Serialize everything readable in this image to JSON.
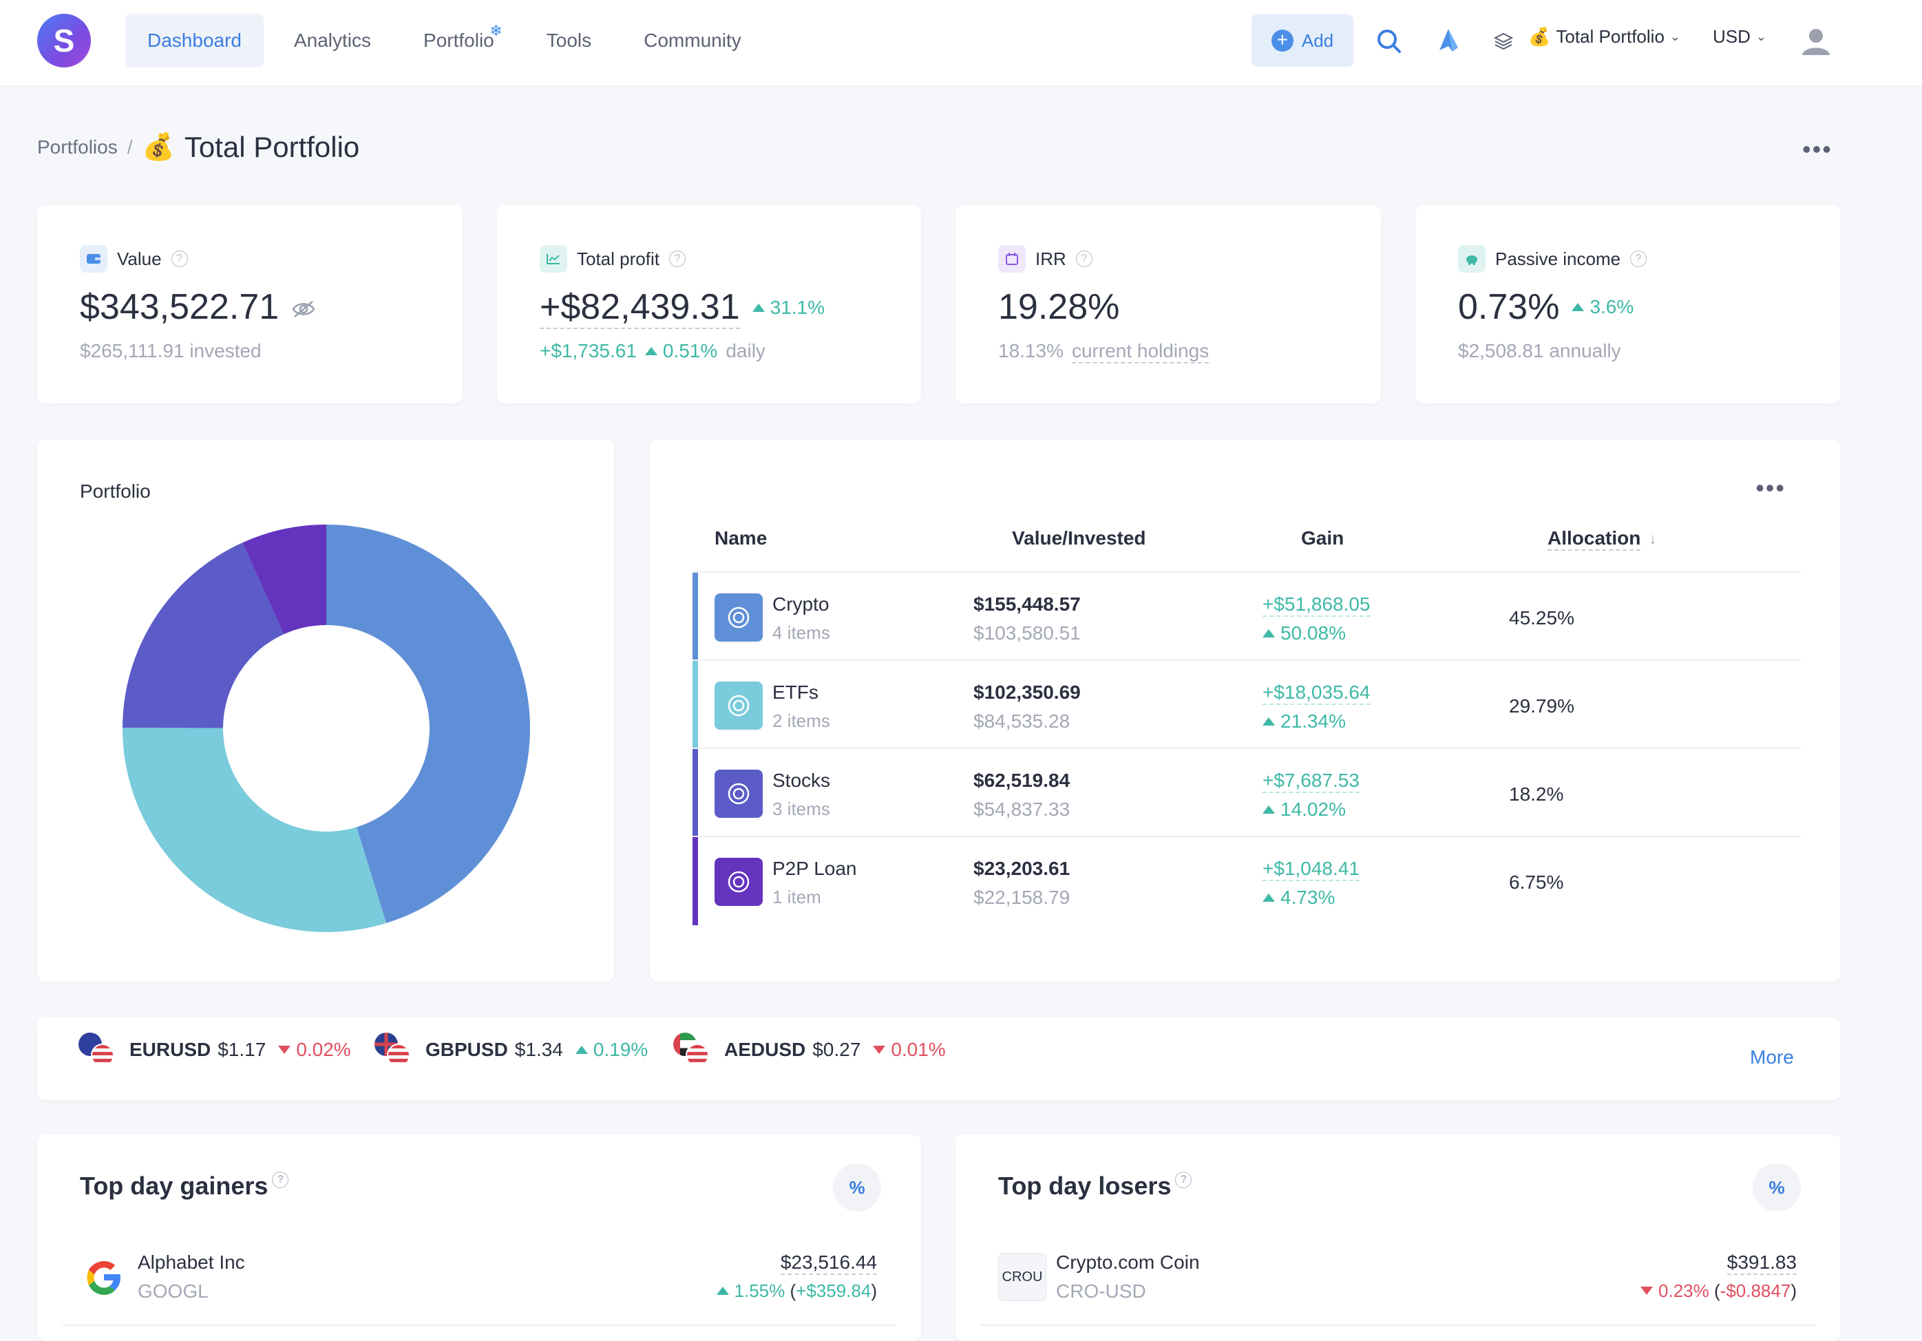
{
  "logo": "S",
  "nav": [
    {
      "label": "Dashboard",
      "active": true
    },
    {
      "label": "Analytics"
    },
    {
      "label": "Portfolio",
      "badge": "❄"
    },
    {
      "label": "Tools"
    },
    {
      "label": "Community"
    }
  ],
  "header": {
    "add_label": "Add",
    "portfolio_emoji": "💰",
    "portfolio_select": "Total Portfolio",
    "currency_select": "USD"
  },
  "breadcrumb": {
    "root": "Portfolios",
    "separator": "/",
    "emoji": "💰",
    "title": "Total Portfolio"
  },
  "stats": {
    "value": {
      "label": "Value",
      "amount": "$343,522.71",
      "sub": "$265,111.91 invested"
    },
    "profit": {
      "label": "Total profit",
      "amount": "+$82,439.31",
      "change": "31.1%",
      "daily_amount": "+$1,735.61",
      "daily_pct": "0.51%",
      "daily_word": "daily"
    },
    "irr": {
      "label": "IRR",
      "amount": "19.28%",
      "sub_pct": "18.13%",
      "sub_link": "current holdings"
    },
    "passive": {
      "label": "Passive income",
      "amount": "0.73%",
      "change": "3.6%",
      "sub": "$2,508.81 annually"
    }
  },
  "portfolio_chart": {
    "title": "Portfolio"
  },
  "chart_data": {
    "type": "pie",
    "title": "Portfolio",
    "categories": [
      "Crypto",
      "ETFs",
      "Stocks",
      "P2P Loan"
    ],
    "values": [
      45.25,
      29.79,
      18.2,
      6.75
    ],
    "colors": [
      "#5f8fd6",
      "#7acbdc",
      "#5b5cc7",
      "#6434bf"
    ]
  },
  "holdings_table": {
    "columns": [
      "Name",
      "Value/Invested",
      "Gain",
      "Allocation"
    ],
    "rows": [
      {
        "name": "Crypto",
        "items": "4 items",
        "value": "$155,448.57",
        "invested": "$103,580.51",
        "gain": "+$51,868.05",
        "gain_pct": "50.08%",
        "allocation": "45.25%",
        "color": "#5f8fd6"
      },
      {
        "name": "ETFs",
        "items": "2 items",
        "value": "$102,350.69",
        "invested": "$84,535.28",
        "gain": "+$18,035.64",
        "gain_pct": "21.34%",
        "allocation": "29.79%",
        "color": "#7acbdc"
      },
      {
        "name": "Stocks",
        "items": "3 items",
        "value": "$62,519.84",
        "invested": "$54,837.33",
        "gain": "+$7,687.53",
        "gain_pct": "14.02%",
        "allocation": "18.2%",
        "color": "#5b5cc7"
      },
      {
        "name": "P2P Loan",
        "items": "1 item",
        "value": "$23,203.61",
        "invested": "$22,158.79",
        "gain": "+$1,048.41",
        "gain_pct": "4.73%",
        "allocation": "6.75%",
        "color": "#6434bf"
      }
    ]
  },
  "fx": [
    {
      "pair": "EURUSD",
      "price": "$1.17",
      "change": "0.02%",
      "direction": "down"
    },
    {
      "pair": "GBPUSD",
      "price": "$1.34",
      "change": "0.19%",
      "direction": "up"
    },
    {
      "pair": "AEDUSD",
      "price": "$0.27",
      "change": "0.01%",
      "direction": "down"
    }
  ],
  "fx_more": "More",
  "gainers": {
    "title": "Top day gainers",
    "toggle": "%",
    "items": [
      {
        "name": "Alphabet Inc",
        "symbol": "GOOGL",
        "price": "$23,516.44",
        "pct": "1.55%",
        "amount": "+$359.84"
      }
    ]
  },
  "losers": {
    "title": "Top day losers",
    "toggle": "%",
    "items": [
      {
        "name": "Crypto.com Coin",
        "symbol": "CRO-USD",
        "logo_text": "CROU",
        "price": "$391.83",
        "pct": "0.23%",
        "amount": "-$0.8847"
      }
    ]
  },
  "help_glyph": "?"
}
